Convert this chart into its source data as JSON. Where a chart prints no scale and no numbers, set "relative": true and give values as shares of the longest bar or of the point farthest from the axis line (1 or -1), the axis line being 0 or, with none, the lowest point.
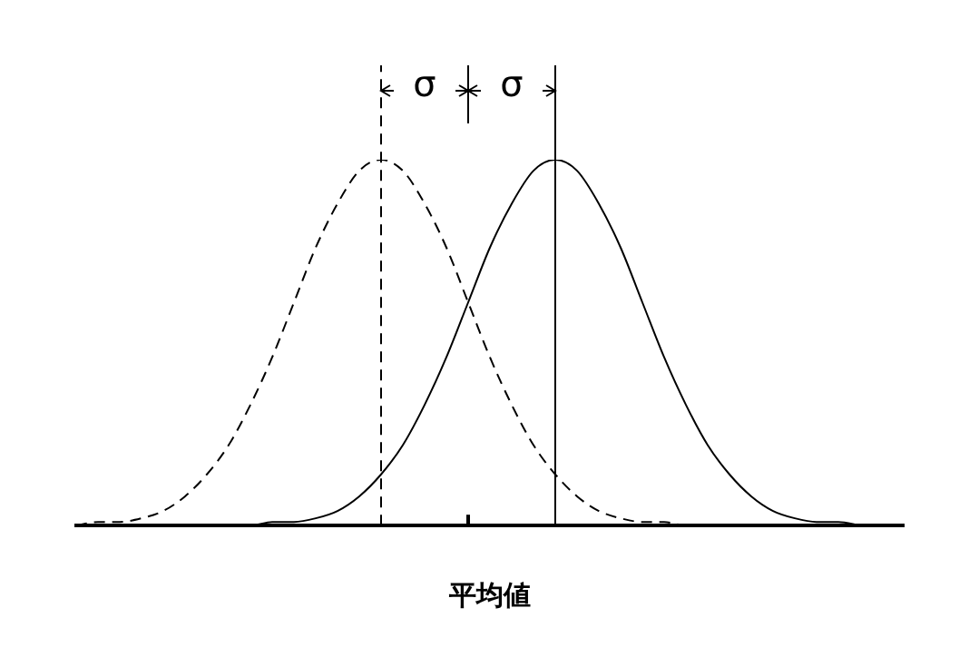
{
  "chart_data": {
    "type": "line",
    "relative": true,
    "xlabel": "平均値",
    "categories": [
      null,
      null,
      null,
      null,
      null,
      null,
      null,
      null,
      null,
      null,
      null,
      null,
      null,
      null,
      null,
      null,
      null,
      null,
      null,
      null,
      null,
      null,
      null,
      null,
      null,
      null,
      null,
      null,
      null,
      null,
      null,
      null,
      null,
      null,
      null,
      null,
      null,
      null,
      null
    ],
    "series": [
      {
        "color": "#000000",
        "line_style": "dashed",
        "values": [
          0,
          0.01,
          0.01,
          0.02,
          0.04,
          0.08,
          0.14,
          0.22,
          0.33,
          0.46,
          0.61,
          0.76,
          0.88,
          0.97,
          1,
          0.97,
          0.88,
          0.76,
          0.61,
          0.46,
          0.33,
          0.22,
          0.14,
          0.08,
          0.04,
          0.02,
          0.01,
          0.01,
          0,
          0,
          0,
          0,
          0,
          null,
          null,
          null,
          null,
          null,
          null
        ]
      },
      {
        "color": "#000000",
        "line_style": "solid",
        "values": [
          null,
          null,
          null,
          null,
          null,
          null,
          null,
          0,
          0,
          0.01,
          0.01,
          0.02,
          0.04,
          0.08,
          0.14,
          0.22,
          0.33,
          0.46,
          0.61,
          0.76,
          0.88,
          0.97,
          1,
          0.97,
          0.88,
          0.76,
          0.61,
          0.46,
          0.33,
          0.22,
          0.14,
          0.08,
          0.04,
          0.02,
          0.01,
          0.01,
          0,
          null,
          null
        ]
      }
    ],
    "annotations": [
      "σ",
      "σ"
    ],
    "legend": false,
    "grid": false,
    "marker": "none"
  }
}
